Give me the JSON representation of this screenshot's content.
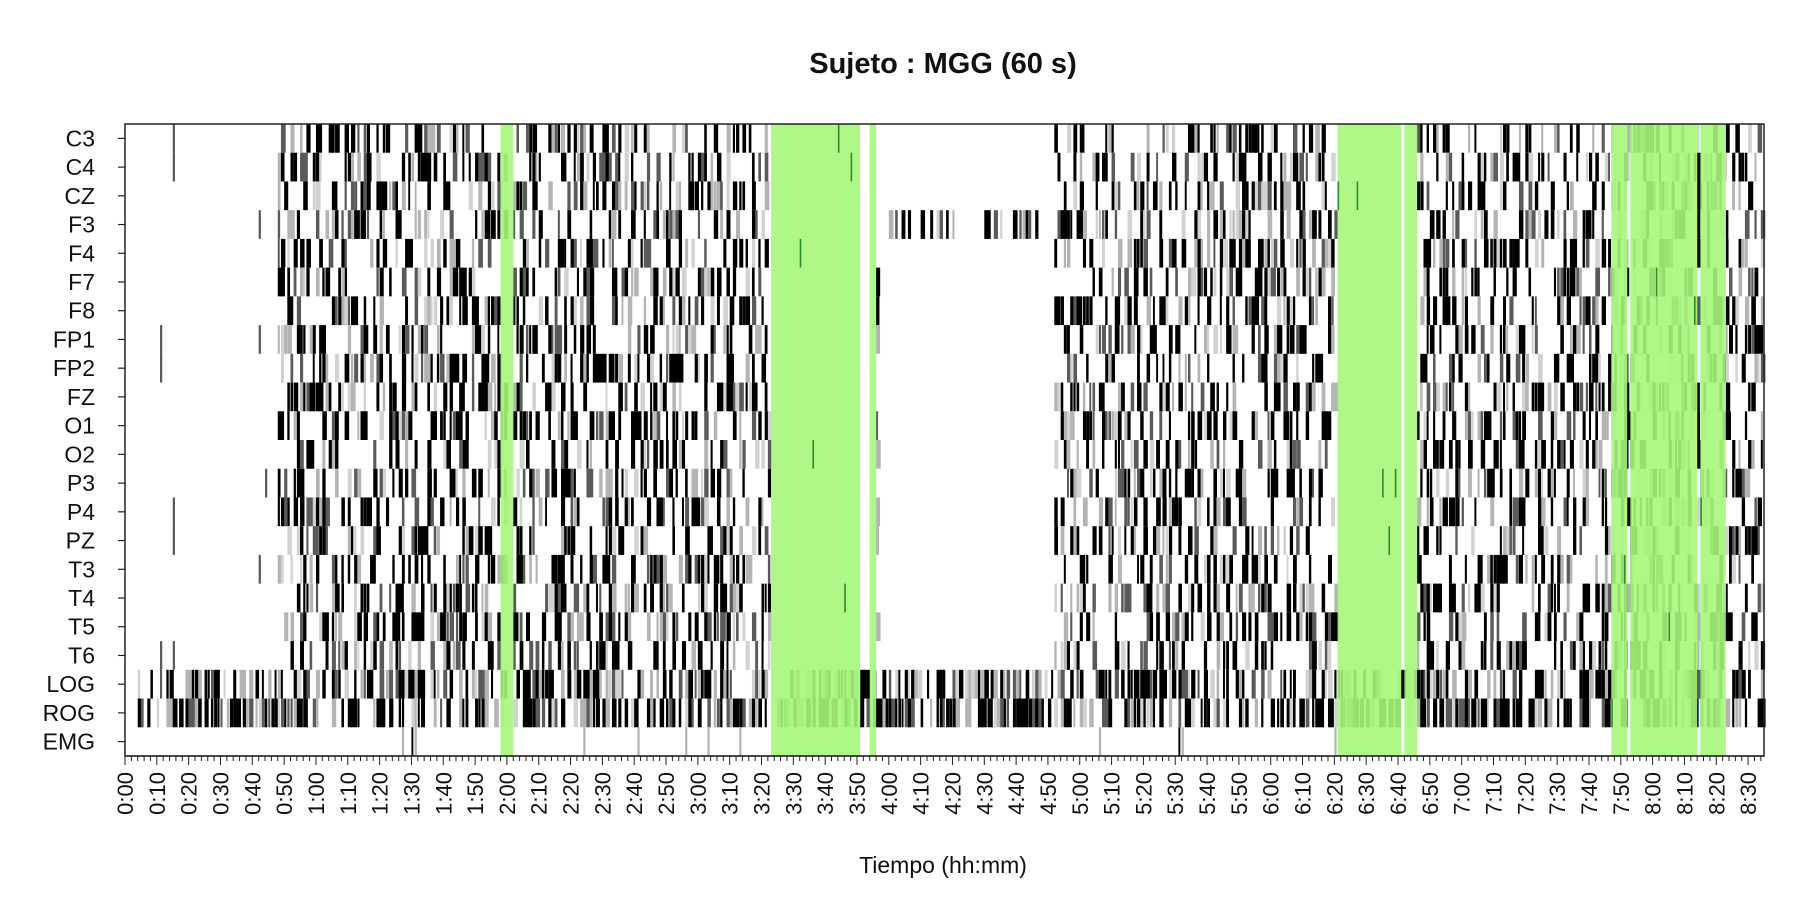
{
  "chart_data": {
    "type": "heatmap",
    "title": "Sujeto : MGG  (60 s)",
    "xlabel": "Tiempo (hh:mm)",
    "ylabel": "",
    "x_unit": "minutes",
    "xlim": [
      0,
      515
    ],
    "channels": [
      "C3",
      "C4",
      "CZ",
      "F3",
      "F4",
      "F7",
      "F8",
      "FP1",
      "FP2",
      "FZ",
      "O1",
      "O2",
      "P3",
      "P4",
      "PZ",
      "T3",
      "T4",
      "T5",
      "T6",
      "LOG",
      "ROG",
      "EMG"
    ],
    "x_ticks": [
      "0:00",
      "0:10",
      "0:20",
      "0:30",
      "0:40",
      "0:50",
      "1:00",
      "1:10",
      "1:20",
      "1:30",
      "1:40",
      "1:50",
      "2:00",
      "2:10",
      "2:20",
      "2:30",
      "2:40",
      "2:50",
      "3:00",
      "3:10",
      "3:20",
      "3:30",
      "3:40",
      "3:50",
      "4:00",
      "4:10",
      "4:20",
      "4:30",
      "4:40",
      "4:50",
      "5:00",
      "5:10",
      "5:20",
      "5:30",
      "5:40",
      "5:50",
      "6:00",
      "6:10",
      "6:20",
      "6:30",
      "6:40",
      "6:50",
      "7:00",
      "7:10",
      "7:20",
      "7:30",
      "7:40",
      "7:50",
      "8:00",
      "8:10",
      "8:20",
      "8:30"
    ],
    "highlight_color": "#a6f77b",
    "highlights": [
      [
        118,
        122
      ],
      [
        203,
        206
      ],
      [
        206,
        231
      ],
      [
        234,
        236
      ],
      [
        381,
        401
      ],
      [
        402,
        406
      ],
      [
        467,
        472
      ],
      [
        473,
        494
      ],
      [
        495,
        503
      ]
    ],
    "cell_colors": [
      "#000000",
      "#5a5a5a",
      "#b4b4b4",
      "#d2d2d2",
      "#2e8b2e"
    ],
    "activity_segments": [
      {
        "channels": "all-eeg",
        "ranges": [
          [
            48,
            120
          ],
          [
            122,
            203
          ],
          [
            236,
            237
          ],
          [
            292,
            381
          ],
          [
            406,
            515
          ]
        ]
      },
      {
        "channels": "F3",
        "ranges": [
          [
            240,
            290
          ]
        ]
      },
      {
        "channels": "LOG",
        "ranges": [
          [
            4,
            515
          ]
        ]
      },
      {
        "channels": "ROG",
        "ranges": [
          [
            4,
            515
          ]
        ]
      }
    ],
    "sparse_marks": [
      {
        "channel": "C3",
        "time": 15
      },
      {
        "channel": "C4",
        "time": 15
      },
      {
        "channel": "F3",
        "time": 42
      },
      {
        "channel": "FP1",
        "time": 11
      },
      {
        "channel": "FP1",
        "time": 42
      },
      {
        "channel": "FP2",
        "time": 11
      },
      {
        "channel": "P3",
        "time": 44
      },
      {
        "channel": "P4",
        "time": 15
      },
      {
        "channel": "PZ",
        "time": 15
      },
      {
        "channel": "T3",
        "time": 42
      },
      {
        "channel": "T6",
        "time": 11
      },
      {
        "channel": "T6",
        "time": 15
      },
      {
        "channel": "EMG",
        "time": 87
      },
      {
        "channel": "EMG",
        "time": 91
      },
      {
        "channel": "EMG",
        "time": 144
      },
      {
        "channel": "EMG",
        "time": 161
      },
      {
        "channel": "EMG",
        "time": 176
      },
      {
        "channel": "EMG",
        "time": 183
      },
      {
        "channel": "EMG",
        "time": 193
      },
      {
        "channel": "EMG",
        "time": 306
      },
      {
        "channel": "EMG",
        "time": 332
      },
      {
        "channel": "EMG",
        "time": 380
      }
    ],
    "grid": false,
    "legend": "none"
  }
}
